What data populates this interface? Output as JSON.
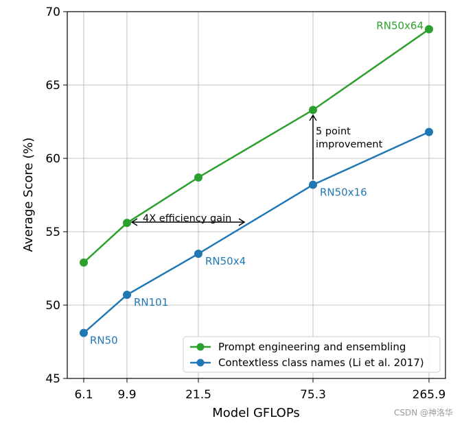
{
  "chart_data": {
    "type": "line",
    "categories": [
      "6.1",
      "9.9",
      "21.5",
      "75.3",
      "265.9"
    ],
    "xlabel": "Model GFLOPs",
    "ylabel": "Average Score (%)",
    "ylim": [
      45,
      70
    ],
    "yticks": [
      "45",
      "50",
      "55",
      "60",
      "65",
      "70"
    ],
    "grid": true,
    "legend_position": "bottom-right",
    "series": [
      {
        "name": "Prompt engineering and ensembling",
        "color": "#2ca02c",
        "values": [
          52.9,
          55.6,
          58.7,
          63.3,
          68.8
        ]
      },
      {
        "name": "Contextless class names (Li et al. 2017)",
        "color": "#1f77b4",
        "values": [
          48.1,
          50.7,
          53.5,
          58.2,
          61.8
        ]
      }
    ],
    "point_labels": [
      {
        "text": "RN50",
        "series": 1,
        "index": 0,
        "color": "#1f77b4"
      },
      {
        "text": "RN101",
        "series": 1,
        "index": 1,
        "color": "#1f77b4"
      },
      {
        "text": "RN50x4",
        "series": 1,
        "index": 2,
        "color": "#1f77b4"
      },
      {
        "text": "RN50x16",
        "series": 1,
        "index": 3,
        "color": "#1f77b4"
      },
      {
        "text": "RN50x64",
        "series": 0,
        "index": 4,
        "color": "#2ca02c"
      }
    ],
    "annotations": {
      "efficiency": "4X efficiency gain",
      "improvement_line1": "5 point",
      "improvement_line2": "improvement"
    }
  },
  "watermark": "CSDN @神洛华"
}
